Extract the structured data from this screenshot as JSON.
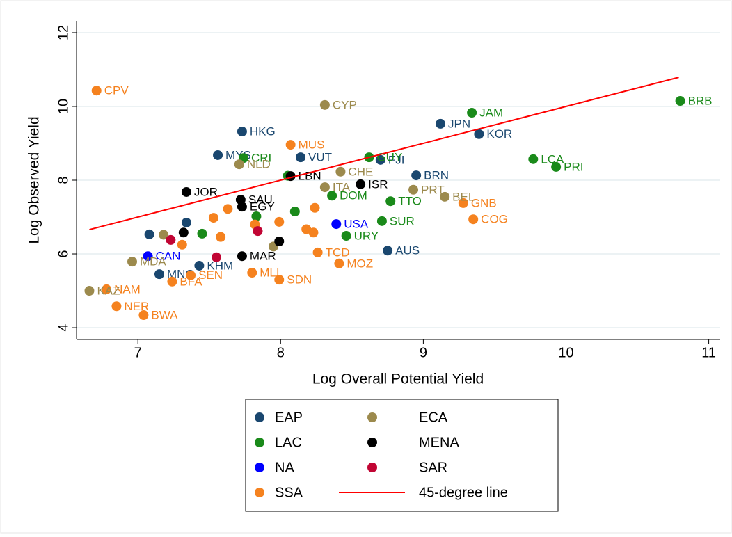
{
  "chart_data": {
    "type": "scatter",
    "x_label": "Log Overall Potential Yield",
    "y_label": "Log Observed Yield",
    "xlim": [
      6.57,
      11.08
    ],
    "ylim": [
      3.68,
      12.32
    ],
    "xticks": [
      7,
      8,
      9,
      10,
      11
    ],
    "yticks": [
      4,
      6,
      8,
      10,
      12
    ],
    "grid": true,
    "series": [
      {
        "name": "EAP",
        "color": "#1a476f",
        "x": [
          7.73,
          7.56,
          8.14,
          9.12,
          9.39,
          8.95,
          8.75,
          7.43,
          7.15,
          8.7,
          7.34,
          7.08
        ],
        "values": [
          9.32,
          8.68,
          8.62,
          9.53,
          9.25,
          8.13,
          6.09,
          5.68,
          5.45,
          8.55,
          6.85,
          6.53
        ],
        "labels": [
          "HKG",
          "MYS",
          "VUT",
          "JPN",
          "KOR",
          "BRN",
          "AUS",
          "KHM",
          "MNG",
          "FJI",
          null,
          null
        ]
      },
      {
        "name": "LAC",
        "color": "#1a8a1a",
        "x": [
          10.8,
          9.34,
          9.77,
          9.93,
          7.74,
          8.62,
          8.77,
          8.71,
          8.36,
          8.46,
          8.05,
          7.83,
          7.45,
          8.1
        ],
        "values": [
          10.15,
          9.83,
          8.57,
          8.36,
          8.6,
          8.62,
          7.43,
          6.89,
          7.58,
          6.49,
          8.12,
          7.02,
          6.55,
          7.15
        ],
        "labels": [
          "BRB",
          "JAM",
          "LCA",
          "PRI",
          "CRI",
          "GUY",
          "TTO",
          "SUR",
          "DOM",
          "URY",
          null,
          null,
          null,
          null
        ]
      },
      {
        "name": "NA",
        "color": "#0000ff",
        "x": [
          8.39,
          7.07
        ],
        "values": [
          6.81,
          5.94
        ],
        "labels": [
          "USA",
          "CAN"
        ]
      },
      {
        "name": "SSA",
        "color": "#f5821f",
        "x": [
          6.71,
          8.07,
          9.28,
          9.35,
          8.26,
          8.41,
          7.99,
          7.8,
          7.37,
          7.24,
          6.78,
          6.85,
          7.04,
          7.53,
          7.63,
          7.82,
          7.99,
          8.18,
          7.31,
          7.58,
          8.24,
          8.23
        ],
        "values": [
          10.43,
          8.96,
          7.38,
          6.94,
          6.04,
          5.74,
          5.3,
          5.49,
          5.42,
          5.25,
          5.04,
          4.58,
          4.34,
          6.98,
          7.22,
          6.8,
          6.87,
          6.67,
          6.25,
          6.46,
          7.25,
          6.58
        ],
        "labels": [
          "CPV",
          "MUS",
          "GNB",
          "COG",
          "TCD",
          "MOZ",
          "SDN",
          "MLI",
          "SEN",
          "BFA",
          "NAM",
          "NER",
          "BWA",
          null,
          null,
          null,
          null,
          null,
          null,
          null,
          null,
          null
        ]
      },
      {
        "name": "ECA",
        "color": "#9c8a4d",
        "x": [
          8.31,
          8.42,
          7.71,
          8.31,
          8.93,
          9.15,
          6.66,
          6.96,
          7.95,
          7.18
        ],
        "values": [
          10.04,
          8.23,
          8.43,
          7.81,
          7.74,
          7.55,
          5.0,
          5.79,
          6.2,
          6.52
        ],
        "labels": [
          "CYP",
          "CHE",
          "NLD",
          "ITA",
          "PRT",
          "BEL",
          "KAZ",
          "MDA",
          null,
          null
        ]
      },
      {
        "name": "MENA",
        "color": "#000000",
        "x": [
          7.34,
          7.72,
          8.56,
          8.07,
          7.73,
          7.73,
          7.99,
          7.32
        ],
        "values": [
          7.68,
          7.47,
          7.89,
          8.11,
          7.28,
          5.94,
          6.34,
          6.58
        ],
        "labels": [
          "JOR",
          "SAU",
          "ISR",
          "LBN",
          "EGY",
          "MAR",
          null,
          null
        ]
      },
      {
        "name": "SAR",
        "color": "#c10534",
        "x": [
          7.55,
          7.23,
          7.84
        ],
        "values": [
          5.91,
          6.38,
          6.62
        ],
        "labels": [
          null,
          null,
          null
        ]
      },
      {
        "name": "45-degree line",
        "color": "#ff0000",
        "style": "line",
        "x": [
          6.66,
          10.79
        ],
        "values": [
          6.66,
          10.79
        ]
      }
    ]
  }
}
